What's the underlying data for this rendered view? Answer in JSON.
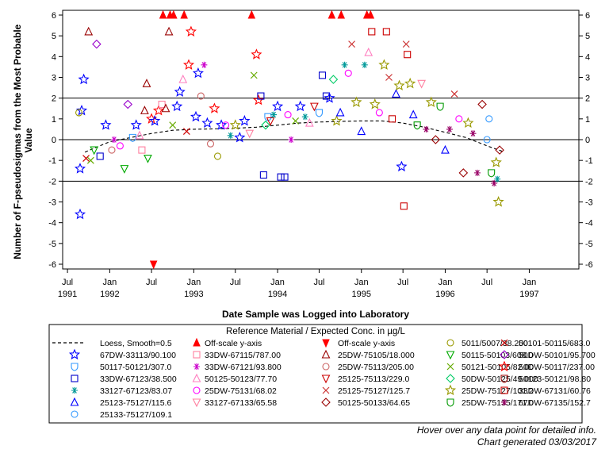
{
  "chart_data": {
    "type": "scatter",
    "title": "",
    "xlabel": "Date Sample was Logged into Laboratory",
    "ylabel": "Number of F-pseudosigmas from the Most Probable Value",
    "ylabel_lines": [
      "Number of F-pseudosigmas from the Most Probable",
      "Value"
    ],
    "ylim": [
      -6,
      6
    ],
    "yticks": [
      -6,
      -5,
      -4,
      -3,
      -2,
      -1,
      0,
      1,
      2,
      3,
      4,
      5,
      6
    ],
    "xlim": [
      "1991-06-10",
      "1997-08-05"
    ],
    "xticks": [
      {
        "date": "1991-07-01",
        "label": "Jul",
        "year": "1991"
      },
      {
        "date": "1992-01-01",
        "label": "Jan",
        "year": "1992"
      },
      {
        "date": "1992-07-01",
        "label": "Jul",
        "year": ""
      },
      {
        "date": "1993-01-01",
        "label": "Jan",
        "year": "1993"
      },
      {
        "date": "1993-07-01",
        "label": "Jul",
        "year": ""
      },
      {
        "date": "1994-01-01",
        "label": "Jan",
        "year": "1994"
      },
      {
        "date": "1994-07-01",
        "label": "Jul",
        "year": ""
      },
      {
        "date": "1995-01-01",
        "label": "Jan",
        "year": "1995"
      },
      {
        "date": "1995-07-01",
        "label": "Jul",
        "year": ""
      },
      {
        "date": "1996-01-01",
        "label": "Jan",
        "year": "1996"
      },
      {
        "date": "1996-07-01",
        "label": "Jul",
        "year": ""
      },
      {
        "date": "1997-01-01",
        "label": "Jan",
        "year": "1997"
      }
    ],
    "reference_lines": [
      2,
      0,
      -2
    ],
    "grid": false,
    "legend_position": "bottom",
    "legend_title": "Reference Material / Expected Conc. in µg/L",
    "legend": [
      {
        "label": "Loess, Smooth=0.5",
        "marker": "dash",
        "color": "#000000"
      },
      {
        "label": "Off-scale y-axis",
        "marker": "triangle-filled",
        "color": "#ff0000"
      },
      {
        "label": "Off-scale y-axis",
        "marker": "triangle-down-filled",
        "color": "#ff0000"
      },
      {
        "label": "5011/5007/38.200",
        "marker": "circle",
        "color": "#999900"
      },
      {
        "label": "50101-50115/683.0",
        "marker": "x",
        "color": "#cc0000"
      },
      {
        "label": "67DW-33113/90.100",
        "marker": "star",
        "color": "#0000ff"
      },
      {
        "label": "33DW-67115/787.00",
        "marker": "square",
        "color": "#ff80a0"
      },
      {
        "label": "25DW-75105/18.000",
        "marker": "triangle",
        "color": "#990000"
      },
      {
        "label": "50115-50103/608.0",
        "marker": "triangle-down",
        "color": "#00aa00"
      },
      {
        "label": "50DW-50101/95.700",
        "marker": "diamond",
        "color": "#9900cc"
      },
      {
        "label": "50117-50121/307.0",
        "marker": "shield",
        "color": "#3399ff"
      },
      {
        "label": "33DW-67121/93.800",
        "marker": "asterisk",
        "color": "#cc00cc"
      },
      {
        "label": "25DW-75113/205.00",
        "marker": "circle",
        "color": "#cc6666"
      },
      {
        "label": "50121-50105/82.00",
        "marker": "x",
        "color": "#66aa00"
      },
      {
        "label": "50DW-50117/237.00",
        "marker": "star",
        "color": "#ff0000"
      },
      {
        "label": "33DW-67123/38.500",
        "marker": "square",
        "color": "#0000cc"
      },
      {
        "label": "50125-50123/77.70",
        "marker": "triangle",
        "color": "#ff80c0"
      },
      {
        "label": "25125-75113/229.0",
        "marker": "triangle-down",
        "color": "#cc0000"
      },
      {
        "label": "50DW-50125/49.000",
        "marker": "diamond",
        "color": "#00cc66"
      },
      {
        "label": "50123-50121/98.80",
        "marker": "shield",
        "color": "#990000"
      },
      {
        "label": "33127-67123/83.07",
        "marker": "asterisk",
        "color": "#009999"
      },
      {
        "label": "25DW-75131/68.02",
        "marker": "circle",
        "color": "#ff00ff"
      },
      {
        "label": "25125-75127/125.7",
        "marker": "x",
        "color": "#cc3333"
      },
      {
        "label": "25DW-75127/101.2",
        "marker": "star",
        "color": "#999900"
      },
      {
        "label": "33DW-67131/60.76",
        "marker": "square",
        "color": "#cc0000"
      },
      {
        "label": "25123-75127/115.6",
        "marker": "triangle",
        "color": "#0000ff"
      },
      {
        "label": "33127-67133/65.58",
        "marker": "triangle-down",
        "color": "#ff80a0"
      },
      {
        "label": "50125-50133/64.65",
        "marker": "diamond",
        "color": "#990000"
      },
      {
        "label": "25DW-75135/171.0",
        "marker": "shield",
        "color": "#009900"
      },
      {
        "label": "67DW-67135/152.7",
        "marker": "asterisk",
        "color": "#990066"
      },
      {
        "label": "25133-75127/109.1",
        "marker": "circle",
        "color": "#3399ff"
      }
    ],
    "loess": [
      {
        "x": "1991-09-15",
        "y": -0.6
      },
      {
        "x": "1992-01-01",
        "y": -0.1
      },
      {
        "x": "1992-04-01",
        "y": 0.1
      },
      {
        "x": "1992-07-01",
        "y": 0.3
      },
      {
        "x": "1992-10-01",
        "y": 0.45
      },
      {
        "x": "1993-01-01",
        "y": 0.5
      },
      {
        "x": "1993-04-01",
        "y": 0.52
      },
      {
        "x": "1993-07-01",
        "y": 0.55
      },
      {
        "x": "1993-10-01",
        "y": 0.6
      },
      {
        "x": "1994-01-01",
        "y": 0.7
      },
      {
        "x": "1994-04-01",
        "y": 0.8
      },
      {
        "x": "1994-07-01",
        "y": 0.85
      },
      {
        "x": "1994-10-01",
        "y": 0.88
      },
      {
        "x": "1995-01-01",
        "y": 0.9
      },
      {
        "x": "1995-04-01",
        "y": 0.9
      },
      {
        "x": "1995-07-01",
        "y": 0.8
      },
      {
        "x": "1995-10-01",
        "y": 0.6
      },
      {
        "x": "1996-01-01",
        "y": 0.35
      },
      {
        "x": "1996-04-01",
        "y": 0.1
      },
      {
        "x": "1996-07-01",
        "y": -0.3
      },
      {
        "x": "1996-09-15",
        "y": -0.6
      }
    ],
    "points": [
      {
        "x": "1991-09-01",
        "y": 1.4,
        "s": 5
      },
      {
        "x": "1991-09-10",
        "y": 2.9,
        "s": 5
      },
      {
        "x": "1991-08-25",
        "y": -1.4,
        "s": 5
      },
      {
        "x": "1991-08-25",
        "y": -3.6,
        "s": 5
      },
      {
        "x": "1991-08-20",
        "y": 1.3,
        "s": 3
      },
      {
        "x": "1991-10-01",
        "y": 5.2,
        "s": 7
      },
      {
        "x": "1991-11-05",
        "y": 4.6,
        "s": 9
      },
      {
        "x": "1991-09-20",
        "y": -0.9,
        "s": 4
      },
      {
        "x": "1991-10-10",
        "y": -1.0,
        "s": 13
      },
      {
        "x": "1991-10-25",
        "y": -0.5,
        "s": 8
      },
      {
        "x": "1991-11-20",
        "y": -0.8,
        "s": 15
      },
      {
        "x": "1991-12-15",
        "y": 0.7,
        "s": 5
      },
      {
        "x": "1992-01-10",
        "y": -0.5,
        "s": 12
      },
      {
        "x": "1992-01-20",
        "y": 0.0,
        "s": 11
      },
      {
        "x": "1992-02-15",
        "y": -0.3,
        "s": 21
      },
      {
        "x": "1992-03-05",
        "y": -1.4,
        "s": 8
      },
      {
        "x": "1992-03-20",
        "y": 1.7,
        "s": 9
      },
      {
        "x": "1992-04-10",
        "y": 0.1,
        "s": 10
      },
      {
        "x": "1992-04-25",
        "y": 0.7,
        "s": 5
      },
      {
        "x": "1992-05-10",
        "y": 0.2,
        "s": 16
      },
      {
        "x": "1992-05-20",
        "y": -0.5,
        "s": 6
      },
      {
        "x": "1992-06-01",
        "y": 1.4,
        "s": 7
      },
      {
        "x": "1992-06-10",
        "y": 2.7,
        "s": 7
      },
      {
        "x": "1992-06-15",
        "y": -0.9,
        "s": 8
      },
      {
        "x": "1992-07-01",
        "y": 1.0,
        "s": 14
      },
      {
        "x": "1992-07-15",
        "y": 0.9,
        "s": 5
      },
      {
        "x": "1992-08-01",
        "y": 1.4,
        "s": 14
      },
      {
        "x": "1992-08-15",
        "y": 1.7,
        "s": 6
      },
      {
        "x": "1992-09-01",
        "y": 1.5,
        "s": 7
      },
      {
        "x": "1992-09-15",
        "y": 5.2,
        "s": 7
      },
      {
        "x": "1992-10-01",
        "y": 0.7,
        "s": 13
      },
      {
        "x": "1992-10-20",
        "y": 1.6,
        "s": 5
      },
      {
        "x": "1992-11-01",
        "y": 2.3,
        "s": 5
      },
      {
        "x": "1992-11-15",
        "y": 2.9,
        "s": 16
      },
      {
        "x": "1992-12-01",
        "y": 0.4,
        "s": 4
      },
      {
        "x": "1992-12-10",
        "y": 3.6,
        "s": 14
      },
      {
        "x": "1992-12-20",
        "y": 5.2,
        "s": 14
      },
      {
        "x": "1993-01-10",
        "y": 1.1,
        "s": 5
      },
      {
        "x": "1993-01-20",
        "y": 3.2,
        "s": 5
      },
      {
        "x": "1993-02-01",
        "y": 2.1,
        "s": 12
      },
      {
        "x": "1993-02-15",
        "y": 3.6,
        "s": 11
      },
      {
        "x": "1993-03-01",
        "y": 0.8,
        "s": 5
      },
      {
        "x": "1993-03-15",
        "y": -0.2,
        "s": 12
      },
      {
        "x": "1993-04-01",
        "y": 1.5,
        "s": 14
      },
      {
        "x": "1993-04-15",
        "y": -0.8,
        "s": 3
      },
      {
        "x": "1993-05-01",
        "y": 0.7,
        "s": 5
      },
      {
        "x": "1993-05-20",
        "y": 0.7,
        "s": 21
      },
      {
        "x": "1993-06-10",
        "y": 0.2,
        "s": 20
      },
      {
        "x": "1993-07-01",
        "y": 0.7,
        "s": 23
      },
      {
        "x": "1993-07-20",
        "y": 0.1,
        "s": 5
      },
      {
        "x": "1993-08-10",
        "y": 0.9,
        "s": 5
      },
      {
        "x": "1993-09-01",
        "y": 0.3,
        "s": 26
      },
      {
        "x": "1993-09-20",
        "y": 3.1,
        "s": 13
      },
      {
        "x": "1993-10-01",
        "y": 4.1,
        "s": 14
      },
      {
        "x": "1993-10-10",
        "y": 1.9,
        "s": 14
      },
      {
        "x": "1993-10-20",
        "y": 2.1,
        "s": 15
      },
      {
        "x": "1993-11-01",
        "y": -1.7,
        "s": 15
      },
      {
        "x": "1993-11-10",
        "y": 0.7,
        "s": 18
      },
      {
        "x": "1993-11-20",
        "y": 1.1,
        "s": 10
      },
      {
        "x": "1993-12-01",
        "y": 0.9,
        "s": 17
      },
      {
        "x": "1993-12-15",
        "y": 1.2,
        "s": 20
      },
      {
        "x": "1994-01-01",
        "y": 1.6,
        "s": 5
      },
      {
        "x": "1994-01-15",
        "y": -1.8,
        "s": 15
      },
      {
        "x": "1994-02-01",
        "y": -1.8,
        "s": 15
      },
      {
        "x": "1994-02-15",
        "y": 1.2,
        "s": 21
      },
      {
        "x": "1994-03-01",
        "y": 0.0,
        "s": 11
      },
      {
        "x": "1994-03-20",
        "y": 0.9,
        "s": 13
      },
      {
        "x": "1994-04-10",
        "y": 1.6,
        "s": 5
      },
      {
        "x": "1994-05-01",
        "y": 1.1,
        "s": 20
      },
      {
        "x": "1994-05-20",
        "y": 0.8,
        "s": 16
      },
      {
        "x": "1994-06-10",
        "y": 1.6,
        "s": 17
      },
      {
        "x": "1994-07-01",
        "y": 1.3,
        "s": 10
      },
      {
        "x": "1994-07-15",
        "y": 3.1,
        "s": 15
      },
      {
        "x": "1994-08-01",
        "y": 2.1,
        "s": 15
      },
      {
        "x": "1994-08-15",
        "y": 2.0,
        "s": 5
      },
      {
        "x": "1994-09-01",
        "y": 2.9,
        "s": 18
      },
      {
        "x": "1994-09-15",
        "y": 0.9,
        "s": 23
      },
      {
        "x": "1994-10-01",
        "y": 1.3,
        "s": 25
      },
      {
        "x": "1994-10-20",
        "y": 3.6,
        "s": 20
      },
      {
        "x": "1994-11-05",
        "y": 3.2,
        "s": 21
      },
      {
        "x": "1994-11-20",
        "y": 4.6,
        "s": 22
      },
      {
        "x": "1994-12-10",
        "y": 1.8,
        "s": 23
      },
      {
        "x": "1995-01-01",
        "y": 0.4,
        "s": 25
      },
      {
        "x": "1995-01-15",
        "y": 3.6,
        "s": 20
      },
      {
        "x": "1995-02-01",
        "y": 4.2,
        "s": 16
      },
      {
        "x": "1995-02-15",
        "y": 5.2,
        "s": 24
      },
      {
        "x": "1995-03-01",
        "y": 1.7,
        "s": 23
      },
      {
        "x": "1995-03-20",
        "y": 1.3,
        "s": 21
      },
      {
        "x": "1995-04-10",
        "y": 3.6,
        "s": 23
      },
      {
        "x": "1995-04-20",
        "y": 5.2,
        "s": 24
      },
      {
        "x": "1995-05-01",
        "y": 3.0,
        "s": 22
      },
      {
        "x": "1995-05-15",
        "y": 1.0,
        "s": 24
      },
      {
        "x": "1995-06-01",
        "y": 2.2,
        "s": 25
      },
      {
        "x": "1995-06-15",
        "y": 2.6,
        "s": 23
      },
      {
        "x": "1995-06-25",
        "y": -1.3,
        "s": 5
      },
      {
        "x": "1995-07-05",
        "y": -3.2,
        "s": 24
      },
      {
        "x": "1995-07-15",
        "y": 4.6,
        "s": 22
      },
      {
        "x": "1995-07-20",
        "y": 4.1,
        "s": 24
      },
      {
        "x": "1995-08-01",
        "y": 2.7,
        "s": 23
      },
      {
        "x": "1995-08-15",
        "y": 1.2,
        "s": 25
      },
      {
        "x": "1995-09-01",
        "y": 0.7,
        "s": 28
      },
      {
        "x": "1995-09-20",
        "y": 2.7,
        "s": 26
      },
      {
        "x": "1995-10-10",
        "y": 0.5,
        "s": 29
      },
      {
        "x": "1995-11-01",
        "y": 1.8,
        "s": 23
      },
      {
        "x": "1995-11-20",
        "y": 0.0,
        "s": 27
      },
      {
        "x": "1995-12-10",
        "y": 1.6,
        "s": 28
      },
      {
        "x": "1996-01-01",
        "y": -0.5,
        "s": 25
      },
      {
        "x": "1996-01-20",
        "y": 0.5,
        "s": 29
      },
      {
        "x": "1996-02-10",
        "y": 2.2,
        "s": 22
      },
      {
        "x": "1996-03-01",
        "y": 1.0,
        "s": 21
      },
      {
        "x": "1996-03-20",
        "y": -1.6,
        "s": 27
      },
      {
        "x": "1996-04-10",
        "y": 0.8,
        "s": 23
      },
      {
        "x": "1996-05-01",
        "y": 0.3,
        "s": 29
      },
      {
        "x": "1996-05-20",
        "y": -1.6,
        "s": 29
      },
      {
        "x": "1996-06-10",
        "y": 1.7,
        "s": 27
      },
      {
        "x": "1996-07-01",
        "y": 0.0,
        "s": 30
      },
      {
        "x": "1996-07-10",
        "y": 1.0,
        "s": 30
      },
      {
        "x": "1996-07-20",
        "y": -1.6,
        "s": 28
      },
      {
        "x": "1996-08-01",
        "y": -2.1,
        "s": 29
      },
      {
        "x": "1996-08-10",
        "y": -1.1,
        "s": 23
      },
      {
        "x": "1996-08-20",
        "y": -3.0,
        "s": 23
      },
      {
        "x": "1996-08-25",
        "y": -0.5,
        "s": 27
      },
      {
        "x": "1996-08-15",
        "y": -1.9,
        "s": 20
      }
    ],
    "offscale_high": [
      "1992-08-20",
      "1992-09-20",
      "1992-10-05",
      "1992-11-20",
      "1993-09-10",
      "1994-08-25",
      "1994-10-05",
      "1995-01-25",
      "1995-02-10"
    ],
    "offscale_low": [
      "1992-07-10"
    ]
  },
  "footer": {
    "hover_hint": "Hover over any data point for detailed info.",
    "generated": "Chart generated 03/03/2017"
  }
}
